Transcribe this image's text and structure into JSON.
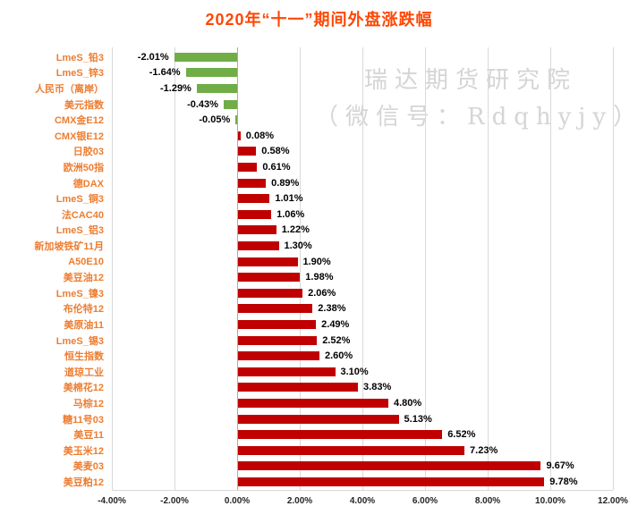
{
  "watermark": {
    "line1": "瑞达期货研究院",
    "line2": "（微信号：Rdqhyjy）"
  },
  "colors": {
    "title": "#FF4703",
    "category_label": "#ED7D31",
    "positive_bar": "#C00000",
    "negative_bar": "#70AD47",
    "gridline": "#D9D9D9",
    "zero_line": "#ABABAB",
    "axis_text": "#262626",
    "watermark": "#D6D4D4"
  },
  "chart_data": {
    "type": "bar",
    "orientation": "horizontal",
    "title": "2020年“十一”期间外盘涨跌幅",
    "categories": [
      "LmeS_铅3",
      "LmeS_锌3",
      "人民币（离岸）",
      "美元指数",
      "CMX金E12",
      "CMX银E12",
      "日胶03",
      "欧洲50指",
      "德DAX",
      "LmeS_铜3",
      "法CAC40",
      "LmeS_铝3",
      "新加坡铁矿11月",
      "A50E10",
      "美豆油12",
      "LmeS_镍3",
      "布伦特12",
      "美原油11",
      "LmeS_锡3",
      "恒生指数",
      "道琼工业",
      "美棉花12",
      "马棕12",
      "糖11号03",
      "美豆11",
      "美玉米12",
      "美麦03",
      "美豆粕12"
    ],
    "values": [
      -2.01,
      -1.64,
      -1.29,
      -0.43,
      -0.05,
      0.08,
      0.58,
      0.61,
      0.89,
      1.01,
      1.06,
      1.22,
      1.3,
      1.9,
      1.98,
      2.06,
      2.38,
      2.49,
      2.52,
      2.6,
      3.1,
      3.83,
      4.8,
      5.13,
      6.52,
      7.23,
      9.67,
      9.78
    ],
    "value_labels": [
      "-2.01%",
      "-1.64%",
      "-1.29%",
      "-0.43%",
      "-0.05%",
      "0.08%",
      "0.58%",
      "0.61%",
      "0.89%",
      "1.01%",
      "1.06%",
      "1.22%",
      "1.30%",
      "1.90%",
      "1.98%",
      "2.06%",
      "2.38%",
      "2.49%",
      "2.52%",
      "2.60%",
      "3.10%",
      "3.83%",
      "4.80%",
      "5.13%",
      "6.52%",
      "7.23%",
      "9.67%",
      "9.78%"
    ],
    "x_tick_labels": [
      "-4.00%",
      "-2.00%",
      "0.00%",
      "2.00%",
      "4.00%",
      "6.00%",
      "8.00%",
      "10.00%",
      "12.00%"
    ],
    "x_tick_values": [
      -4,
      -2,
      0,
      2,
      4,
      6,
      8,
      10,
      12
    ],
    "xlim": [
      -4,
      12
    ],
    "grid": true,
    "legend": "none",
    "xlabel": "",
    "ylabel": ""
  }
}
